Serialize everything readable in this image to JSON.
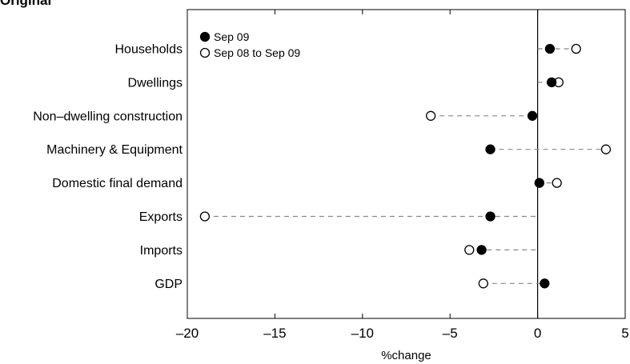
{
  "heading": "Original",
  "chart_data": {
    "type": "scatter",
    "orientation": "horizontal-dot-plot",
    "categories": [
      "Households",
      "Dwellings",
      "Non–dwelling construction",
      "Machinery & Equipment",
      "Domestic final demand",
      "Exports",
      "Imports",
      "GDP"
    ],
    "series": [
      {
        "name": "Sep 09",
        "marker": "filled-circle",
        "color": "#000000",
        "values": [
          0.7,
          0.8,
          -0.3,
          -2.7,
          0.1,
          -2.7,
          -3.2,
          0.4
        ]
      },
      {
        "name": "Sep 08 to Sep 09",
        "marker": "open-circle",
        "color": "#000000",
        "values": [
          2.2,
          1.2,
          -6.1,
          3.9,
          1.1,
          -19.0,
          -3.9,
          -3.1
        ]
      }
    ],
    "xlabel": "%change",
    "xlim": [
      -20,
      5
    ],
    "xticks": [
      -20,
      -15,
      -10,
      -5,
      0,
      5
    ],
    "xtick_labels": [
      "–20",
      "–15",
      "–10",
      "–5",
      "0",
      "5"
    ],
    "connector": "dashed-line-from-zero",
    "connector_color": "#888888",
    "legend_position": "top-left",
    "grid": false
  }
}
